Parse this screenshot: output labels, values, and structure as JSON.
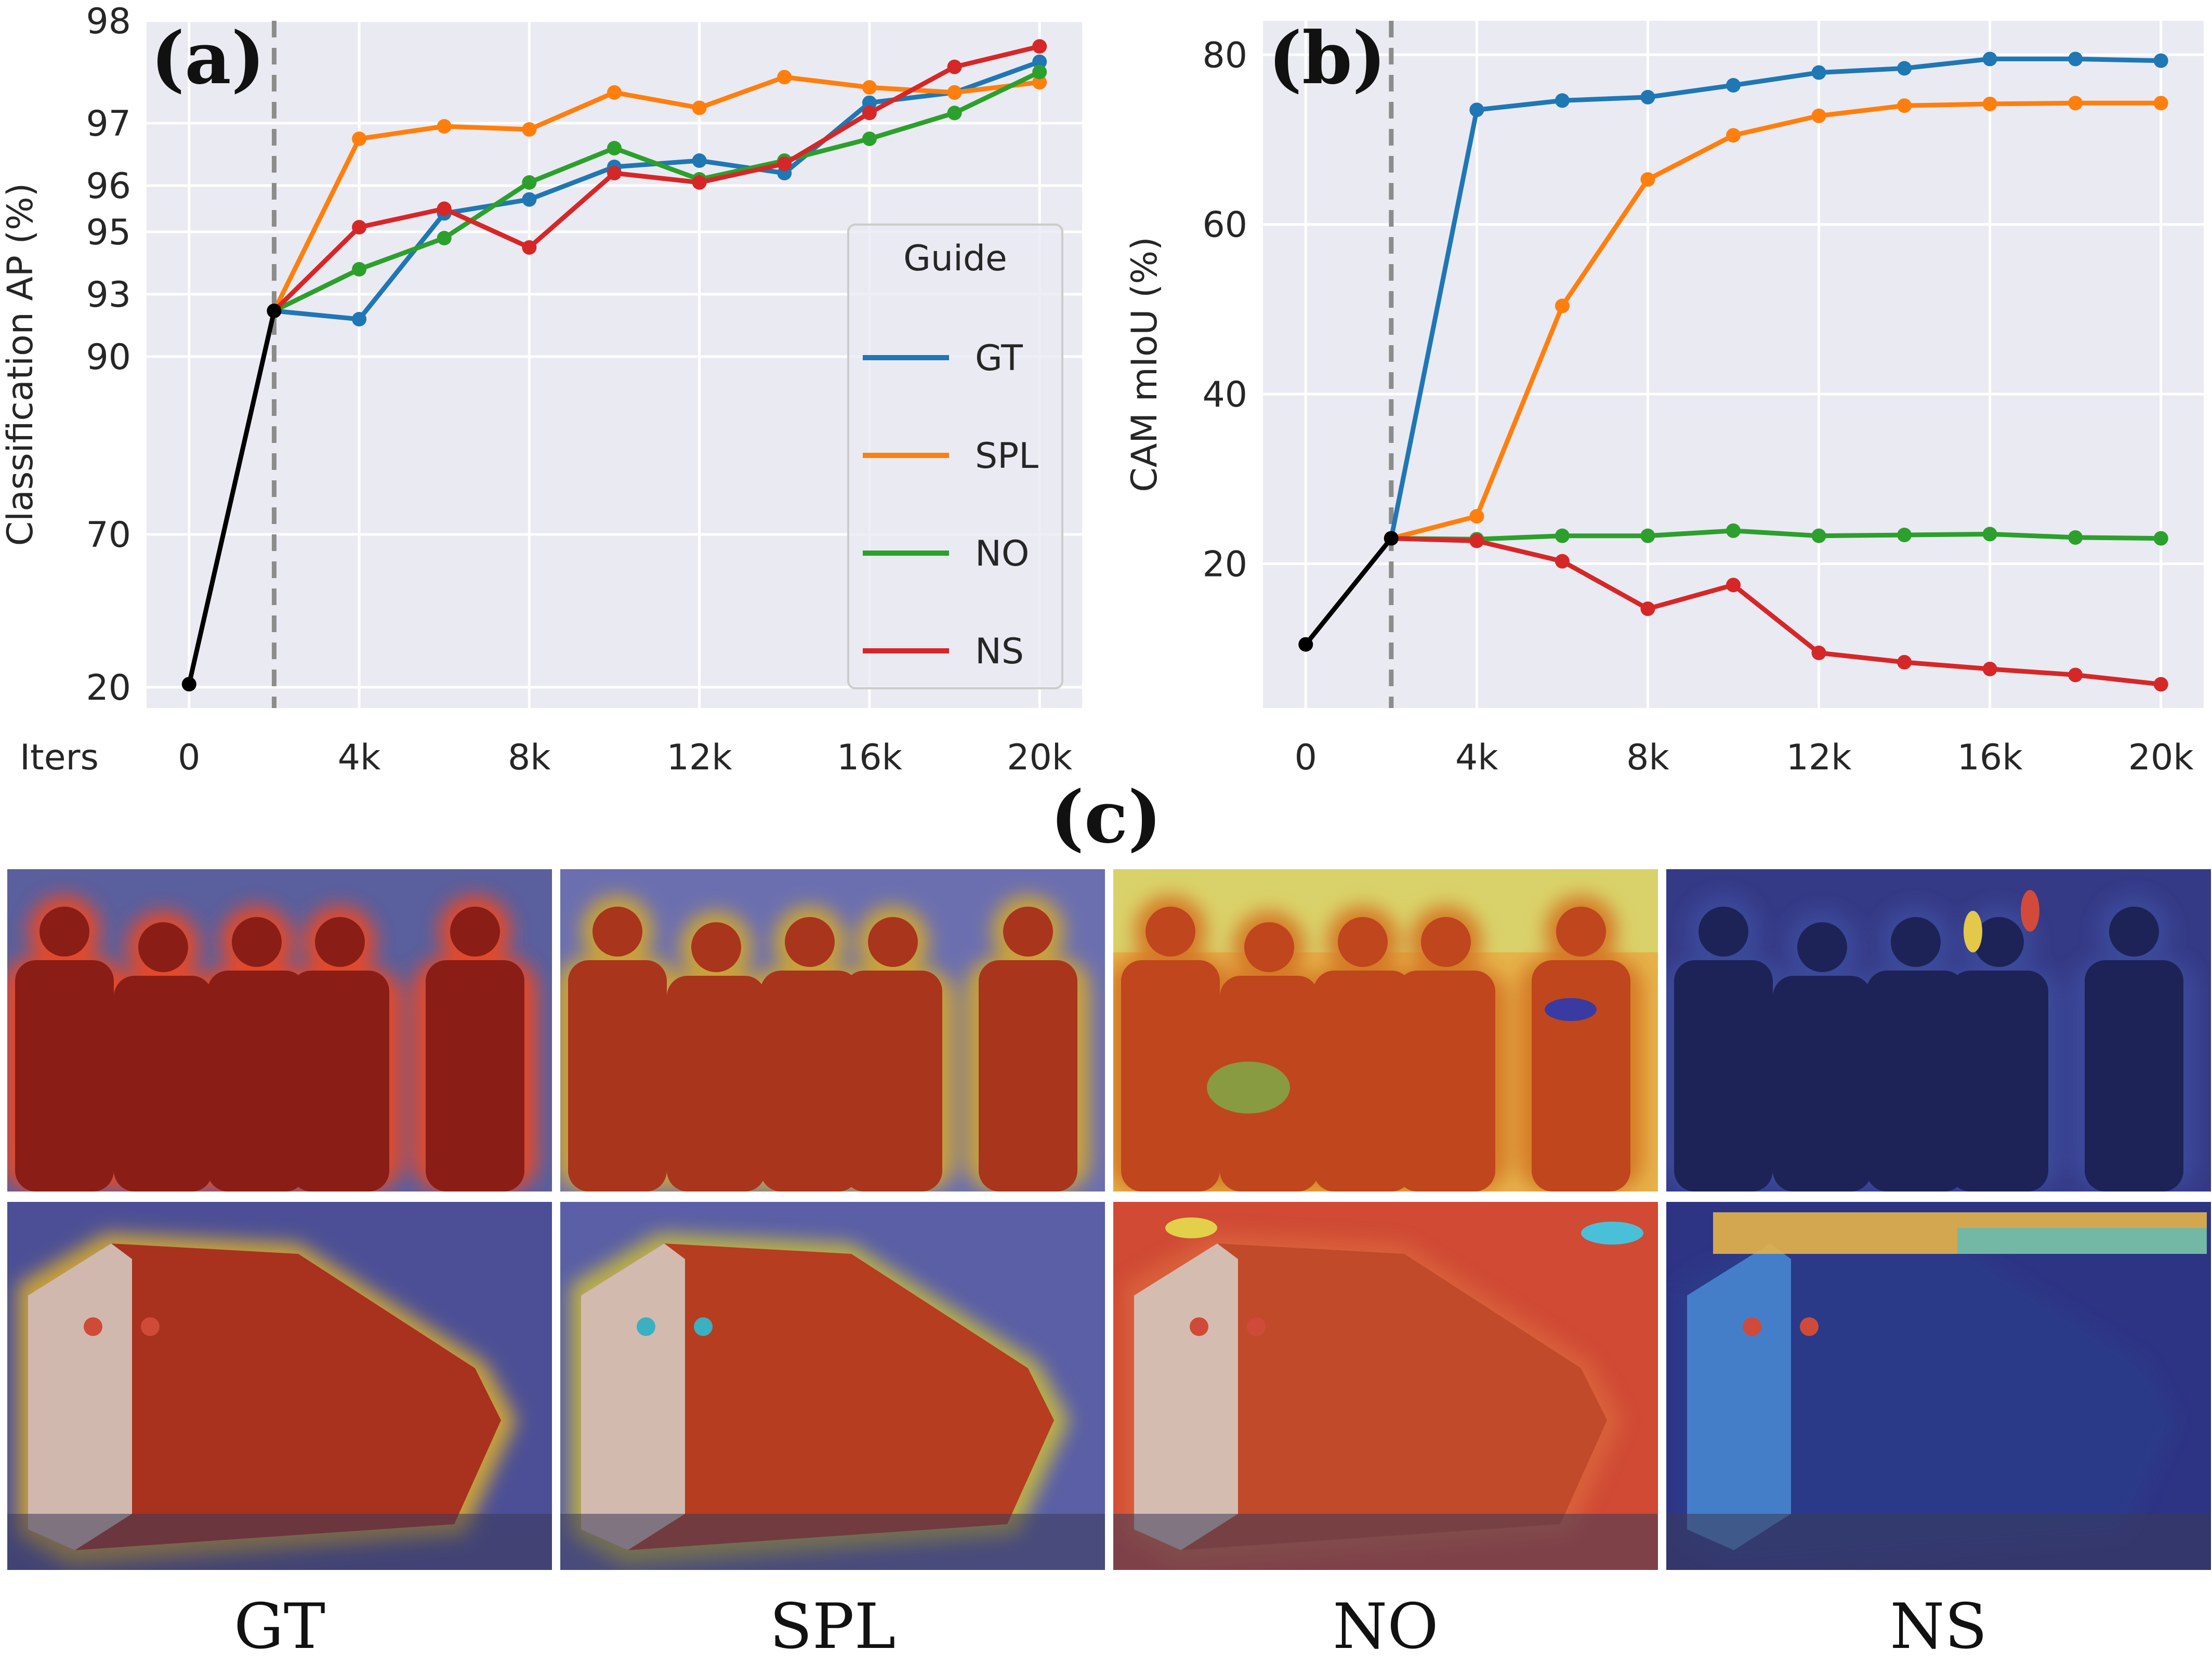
{
  "figure_label_c": "(c)",
  "column_labels": [
    "GT",
    "SPL",
    "NO",
    "NS"
  ],
  "palette": {
    "GT": "#1f77b4",
    "SPL": "#ff7f0e",
    "NO": "#2ca02c",
    "NS": "#d62728",
    "shared": "#000000",
    "background": "#eaeaf2",
    "grid": "#ffffff"
  },
  "chart_data": [
    {
      "panel": "(a)",
      "type": "line",
      "xlabel_text": "Iters",
      "ylabel": "Classification AP (%)",
      "x_ticks": [
        0,
        4000,
        8000,
        12000,
        16000,
        20000
      ],
      "x_tick_labels": [
        "0",
        "4k",
        "8k",
        "12k",
        "16k",
        "20k"
      ],
      "y_ticks": [
        20,
        70,
        90,
        93,
        95,
        96,
        97,
        98
      ],
      "y_tick_labels": [
        "20",
        "70",
        "90",
        "93",
        "95",
        "96",
        "97",
        "98"
      ],
      "y_scale": "piecewise (non-linear tick spacing)",
      "ylim": [
        18,
        98
      ],
      "xlim": [
        -1000,
        21000
      ],
      "marker_line": 2000,
      "grid": true,
      "legend": {
        "title": "Guide",
        "placement": "right",
        "entries": [
          "GT",
          "SPL",
          "NO",
          "NS"
        ]
      },
      "shared_segment": {
        "x": [
          0,
          2000
        ],
        "y": [
          21,
          92.2
        ]
      },
      "series": [
        {
          "name": "GT",
          "x": [
            2000,
            4000,
            6000,
            8000,
            10000,
            12000,
            14000,
            16000,
            18000,
            20000
          ],
          "y": [
            92.2,
            91.8,
            95.4,
            95.7,
            96.3,
            96.4,
            96.2,
            97.2,
            97.3,
            97.6
          ]
        },
        {
          "name": "SPL",
          "x": [
            2000,
            4000,
            6000,
            8000,
            10000,
            12000,
            14000,
            16000,
            18000,
            20000
          ],
          "y": [
            92.2,
            96.75,
            96.95,
            96.9,
            97.3,
            97.15,
            97.45,
            97.35,
            97.3,
            97.4
          ]
        },
        {
          "name": "NO",
          "x": [
            2000,
            4000,
            6000,
            8000,
            10000,
            12000,
            14000,
            16000,
            18000,
            20000
          ],
          "y": [
            92.2,
            93.8,
            94.8,
            96.05,
            96.6,
            96.1,
            96.4,
            96.75,
            97.1,
            97.5
          ]
        },
        {
          "name": "NS",
          "x": [
            2000,
            4000,
            6000,
            8000,
            10000,
            12000,
            14000,
            16000,
            18000,
            20000
          ],
          "y": [
            92.2,
            95.1,
            95.5,
            94.5,
            96.2,
            96.05,
            96.35,
            97.1,
            97.55,
            97.75
          ]
        }
      ]
    },
    {
      "panel": "(b)",
      "type": "line",
      "xlabel": "",
      "ylabel": "CAM mIoU (%)",
      "x_ticks": [
        0,
        4000,
        8000,
        12000,
        16000,
        20000
      ],
      "x_tick_labels": [
        "0",
        "4k",
        "8k",
        "12k",
        "16k",
        "20k"
      ],
      "y_ticks": [
        20,
        40,
        60,
        80
      ],
      "y_tick_labels": [
        "20",
        "40",
        "60",
        "80"
      ],
      "ylim": [
        3,
        84
      ],
      "xlim": [
        -1000,
        21000
      ],
      "marker_line": 2000,
      "grid": true,
      "shared_segment": {
        "x": [
          0,
          2000
        ],
        "y": [
          10.5,
          23
        ]
      },
      "series": [
        {
          "name": "GT",
          "x": [
            2000,
            4000,
            6000,
            8000,
            10000,
            12000,
            14000,
            16000,
            18000,
            20000
          ],
          "y": [
            23,
            73.5,
            74.6,
            75,
            76.4,
            77.9,
            78.4,
            79.5,
            79.5,
            79.3
          ]
        },
        {
          "name": "SPL",
          "x": [
            2000,
            4000,
            6000,
            8000,
            10000,
            12000,
            14000,
            16000,
            18000,
            20000
          ],
          "y": [
            23,
            25.6,
            50.4,
            65.3,
            70.5,
            72.8,
            74,
            74.2,
            74.3,
            74.3
          ]
        },
        {
          "name": "NO",
          "x": [
            2000,
            4000,
            6000,
            8000,
            10000,
            12000,
            14000,
            16000,
            18000,
            20000
          ],
          "y": [
            23,
            22.9,
            23.3,
            23.3,
            23.9,
            23.3,
            23.4,
            23.5,
            23.1,
            23
          ]
        },
        {
          "name": "NS",
          "x": [
            2000,
            4000,
            6000,
            8000,
            10000,
            12000,
            14000,
            16000,
            18000,
            20000
          ],
          "y": [
            23,
            22.7,
            20.3,
            14.7,
            17.5,
            9.5,
            8.4,
            7.6,
            6.9,
            5.8
          ]
        }
      ]
    }
  ]
}
